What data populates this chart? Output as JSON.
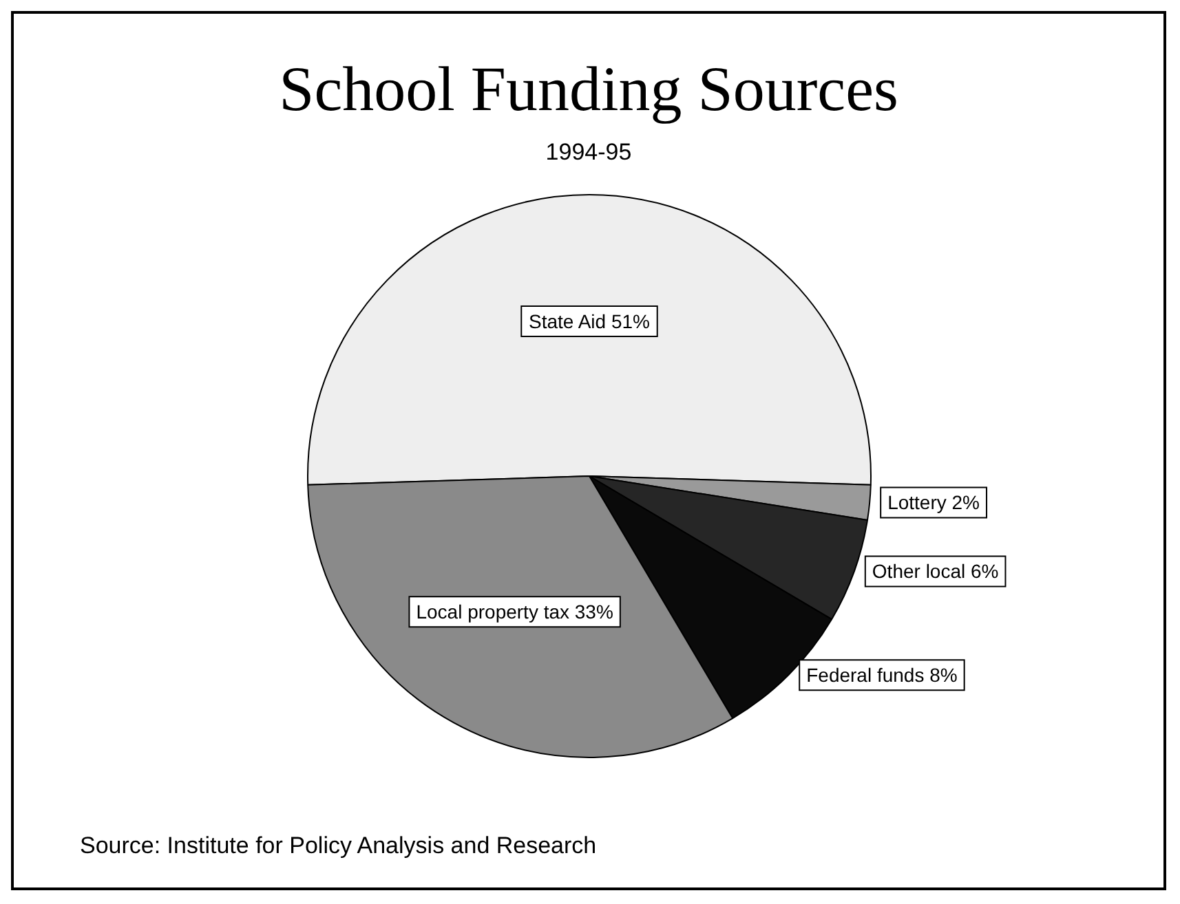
{
  "chart_data": {
    "type": "pie",
    "title": "School Funding Sources",
    "subtitle": "1994-95",
    "categories": [
      "State Aid",
      "Lottery",
      "Other local",
      "Federal funds",
      "Local property tax"
    ],
    "values": [
      51,
      2,
      6,
      8,
      33
    ],
    "value_labels": [
      "51%",
      "2%",
      "6%",
      "8%",
      "33%"
    ],
    "colors": [
      "#eeeeee",
      "#9a9a9a",
      "#262626",
      "#0a0a0a",
      "#8a8a8a"
    ],
    "annotations": [
      "Source: Institute for Policy Analysis and Research"
    ],
    "legend": false
  }
}
